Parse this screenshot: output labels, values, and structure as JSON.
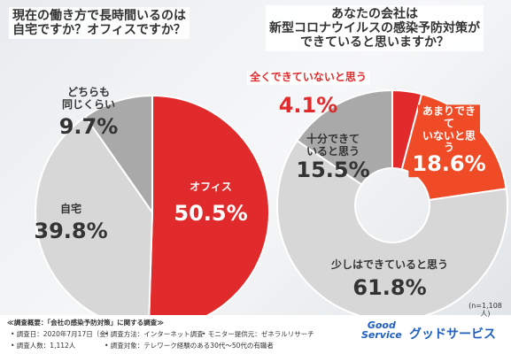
{
  "chart_data": [
    {
      "type": "pie",
      "title": "現在の働き方で長時間いるのは\n自宅ですか？オフィスですか？",
      "categories": [
        "オフィス",
        "自宅",
        "どちらも\n同じくらい"
      ],
      "values": [
        50.5,
        39.8,
        9.7
      ],
      "value_labels": [
        "50.5%",
        "39.8%",
        "9.7%"
      ],
      "colors": [
        "#e12a2b",
        "#d7d7d7",
        "#a9a9a9"
      ]
    },
    {
      "type": "pie",
      "donut": true,
      "title": "あなたの会社は\n新型コロナウイルスの感染予防対策が\nできていると思いますか？",
      "categories": [
        "全くできていないと思う",
        "あまりできて\nいないと思う",
        "少しはできていると思う",
        "十分できて\nいると思う"
      ],
      "values": [
        4.1,
        18.6,
        61.8,
        15.5
      ],
      "value_labels": [
        "4.1%",
        "18.6%",
        "61.8%",
        "15.5%"
      ],
      "colors": [
        "#e12a2b",
        "#ef4b26",
        "#d7d7d7",
        "#a9a9a9"
      ],
      "note": "(n=1,108人)"
    }
  ],
  "footer": {
    "heading": "≪調査概要：「会社の感染予防対策」に関する調査≫",
    "items": [
      "• 調査日：2020年7月17日（金）",
      "• 調査方法：インターネット調査",
      "• モニター提供元：ゼネラルリサーチ",
      "• 調査人数：1,112人",
      "• 調査対象：テレワーク経験のある30代〜50代の有職者"
    ],
    "logo": "Good\nService",
    "brand": "グッドサービス"
  }
}
